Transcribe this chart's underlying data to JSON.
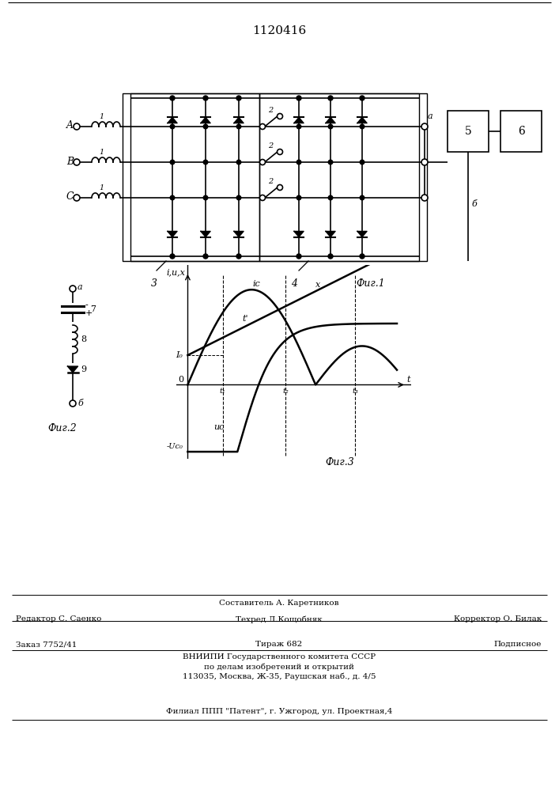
{
  "title": "1120416",
  "fig1_label": "Фиг.1",
  "fig2_label": "Фиг.2",
  "fig3_label": "Фиг.3",
  "bg_color": "#ffffff",
  "phase_labels": [
    "A",
    "B",
    "C"
  ],
  "fig3_ylabel": "i,u,x",
  "fig3_xlabel": "t",
  "fig3_ic_label": "iс",
  "fig3_uc_label": "uс",
  "fig3_I0_label": "I₀",
  "fig3_t1_label": "t₁",
  "fig3_t2_label": "t₂",
  "fig3_t3_label": "t₃",
  "fig3_t_prime_label": "t'",
  "fig3_x_label": "x",
  "fig3_neg_Uc0_label": "-Uс₀",
  "label_a_top": "a",
  "label_b_bot": "б",
  "label_5": "5",
  "label_6": "б",
  "label_block5": "5",
  "label_block6": "6",
  "label_a_out": "a",
  "label_3": "3",
  "label_4": "4",
  "footer_line1": "Составитель А. Каретников",
  "footer_ed": "Редактор С. Саенко",
  "footer_tech": "Техред Л.Кощобняк",
  "footer_corr": "Корректор О. Билак",
  "footer_order": "Заказ 7752/41",
  "footer_circ": "Тираж 682",
  "footer_sub": "Подписное",
  "footer_vniip": "ВНИИПИ Государственного комитета СССР",
  "footer_dept": "по делам изобретений и открытий",
  "footer_addr": "113035, Москва, Ж-35, Раушская наб., д. 4/5",
  "footer_branch": "Филиал ППП \"Патент\", г. Ужгород, ул. Проектная,4"
}
